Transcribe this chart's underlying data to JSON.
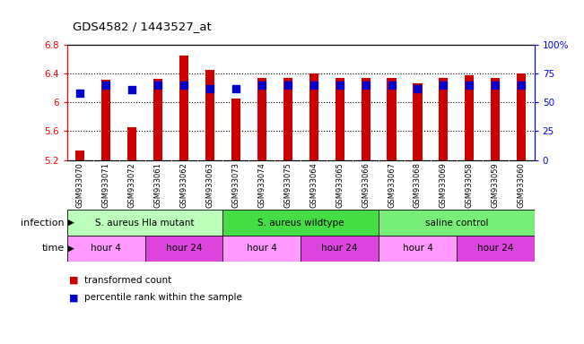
{
  "title": "GDS4582 / 1443527_at",
  "samples": [
    "GSM933070",
    "GSM933071",
    "GSM933072",
    "GSM933061",
    "GSM933062",
    "GSM933063",
    "GSM933073",
    "GSM933074",
    "GSM933075",
    "GSM933064",
    "GSM933065",
    "GSM933066",
    "GSM933067",
    "GSM933068",
    "GSM933069",
    "GSM933058",
    "GSM933059",
    "GSM933060"
  ],
  "bar_values": [
    5.33,
    6.32,
    5.66,
    6.33,
    6.65,
    6.45,
    6.05,
    6.34,
    6.34,
    6.4,
    6.34,
    6.34,
    6.34,
    6.27,
    6.34,
    6.38,
    6.34,
    6.4
  ],
  "percentile_values": [
    58,
    65,
    61,
    65,
    65,
    62,
    62,
    65,
    65,
    65,
    65,
    65,
    65,
    62,
    65,
    65,
    65,
    65
  ],
  "bar_color": "#cc0000",
  "dot_color": "#0000cc",
  "ylim_left": [
    5.2,
    6.8
  ],
  "ylim_right": [
    0,
    100
  ],
  "yticks_left": [
    5.2,
    5.6,
    6.0,
    6.4,
    6.8
  ],
  "ytick_labels_left": [
    "5.2",
    "5.6",
    "6",
    "6.4",
    "6.8"
  ],
  "yticks_right": [
    0,
    25,
    50,
    75,
    100
  ],
  "ytick_labels_right": [
    "0",
    "25",
    "50",
    "75",
    "100%"
  ],
  "grid_vals": [
    5.6,
    6.0,
    6.4
  ],
  "infection_groups": [
    {
      "label": "S. aureus Hla mutant",
      "start": 0,
      "end": 6,
      "color": "#bbffbb"
    },
    {
      "label": "S. aureus wildtype",
      "start": 6,
      "end": 12,
      "color": "#44dd44"
    },
    {
      "label": "saline control",
      "start": 12,
      "end": 18,
      "color": "#66ee66"
    }
  ],
  "time_groups": [
    {
      "label": "hour 4",
      "start": 0,
      "end": 3,
      "color": "#ff99ff"
    },
    {
      "label": "hour 24",
      "start": 3,
      "end": 6,
      "color": "#dd44dd"
    },
    {
      "label": "hour 4",
      "start": 6,
      "end": 9,
      "color": "#ff99ff"
    },
    {
      "label": "hour 24",
      "start": 9,
      "end": 12,
      "color": "#dd44dd"
    },
    {
      "label": "hour 4",
      "start": 12,
      "end": 15,
      "color": "#ff99ff"
    },
    {
      "label": "hour 24",
      "start": 15,
      "end": 18,
      "color": "#dd44dd"
    }
  ],
  "legend_items": [
    {
      "label": "transformed count",
      "color": "#cc0000"
    },
    {
      "label": "percentile rank within the sample",
      "color": "#0000cc"
    }
  ],
  "xlabel_infection": "infection",
  "xlabel_time": "time",
  "bar_width": 0.35,
  "dot_size": 28,
  "n_samples": 18
}
